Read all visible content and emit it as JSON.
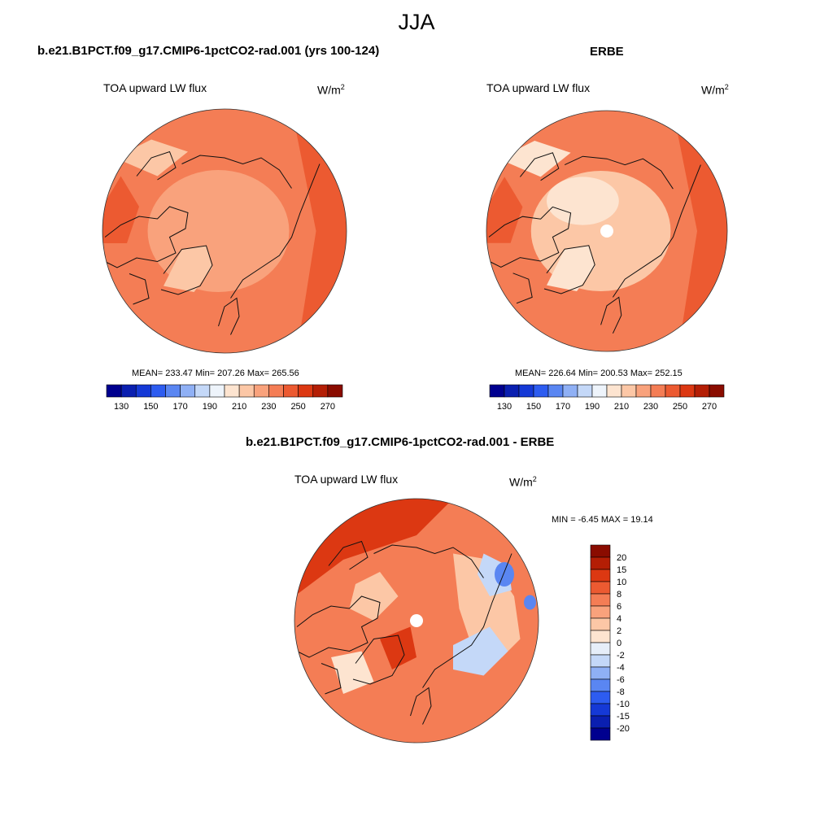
{
  "page_title": "JJA",
  "chart_data": [
    {
      "type": "heatmap",
      "title": "b.e21.B1PCT.f09_g17.CMIP6-1pctCO2-rad.001 (yrs 100-124)",
      "variable": "TOA upward LW flux",
      "units_base": "W/m",
      "units_exp": "2",
      "projection": "north-polar-stereographic",
      "stats": {
        "mean": 233.47,
        "min": 207.26,
        "max": 265.56
      },
      "stats_text": "MEAN= 233.47  Min= 207.26  Max= 265.56",
      "colorbar": {
        "tick_labels": [
          "130",
          "150",
          "170",
          "190",
          "210",
          "230",
          "250",
          "270"
        ],
        "colors": [
          "#00008f",
          "#0a1fb0",
          "#1539d6",
          "#2d5cf0",
          "#5a86f2",
          "#8fb0f5",
          "#c4d8f8",
          "#eef4fb",
          "#fde4d0",
          "#fcc7a6",
          "#f9a27c",
          "#f47d55",
          "#ec5a31",
          "#dc3812",
          "#b41e05",
          "#8a0c00"
        ]
      },
      "region_colors": {
        "ocean_mid": "#f47d55",
        "arctic": "#f9a27c",
        "land_cool": "#fcc7a6",
        "warm": "#ec5a31",
        "coldest": "#fde4d0"
      }
    },
    {
      "type": "heatmap",
      "title": "ERBE",
      "variable": "TOA upward LW flux",
      "units_base": "W/m",
      "units_exp": "2",
      "projection": "north-polar-stereographic",
      "stats": {
        "mean": 226.64,
        "min": 200.53,
        "max": 252.15
      },
      "stats_text": "MEAN= 226.64  Min= 200.53  Max= 252.15",
      "colorbar": {
        "tick_labels": [
          "130",
          "150",
          "170",
          "190",
          "210",
          "230",
          "250",
          "270"
        ],
        "colors": [
          "#00008f",
          "#0a1fb0",
          "#1539d6",
          "#2d5cf0",
          "#5a86f2",
          "#8fb0f5",
          "#c4d8f8",
          "#eef4fb",
          "#fde4d0",
          "#fcc7a6",
          "#f9a27c",
          "#f47d55",
          "#ec5a31",
          "#dc3812",
          "#b41e05",
          "#8a0c00"
        ]
      },
      "region_colors": {
        "ocean_mid": "#f47d55",
        "arctic": "#fcc7a6",
        "land_cool": "#fde4d0",
        "warm": "#ec5a31",
        "coldest": "#fde4d0"
      }
    },
    {
      "type": "heatmap",
      "title": "b.e21.B1PCT.f09_g17.CMIP6-1pctCO2-rad.001 - ERBE",
      "variable": "TOA upward LW flux",
      "units_base": "W/m",
      "units_exp": "2",
      "projection": "north-polar-stereographic",
      "stats": {
        "min": -6.45,
        "max": 19.14
      },
      "stats_text": "MIN =  -6.45 MAX =  19.14",
      "colorbar": {
        "orientation": "vertical",
        "tick_labels": [
          "20",
          "15",
          "10",
          "8",
          "6",
          "4",
          "2",
          "0",
          "-2",
          "-4",
          "-6",
          "-8",
          "-10",
          "-15",
          "-20"
        ],
        "colors": [
          "#8a0c00",
          "#b41e05",
          "#dc3812",
          "#ec5a31",
          "#f47d55",
          "#f9a27c",
          "#fcc7a6",
          "#fde4d0",
          "#e6eef9",
          "#c4d8f8",
          "#8fb0f5",
          "#5a86f2",
          "#2d5cf0",
          "#1539d6",
          "#0a1fb0",
          "#00008f"
        ]
      },
      "region_colors": {
        "base": "#f47d55",
        "warm": "#dc3812",
        "light": "#fcc7a6",
        "white": "#fde4d0",
        "cool": "#c4d8f8",
        "blue": "#5a86f2"
      }
    }
  ]
}
